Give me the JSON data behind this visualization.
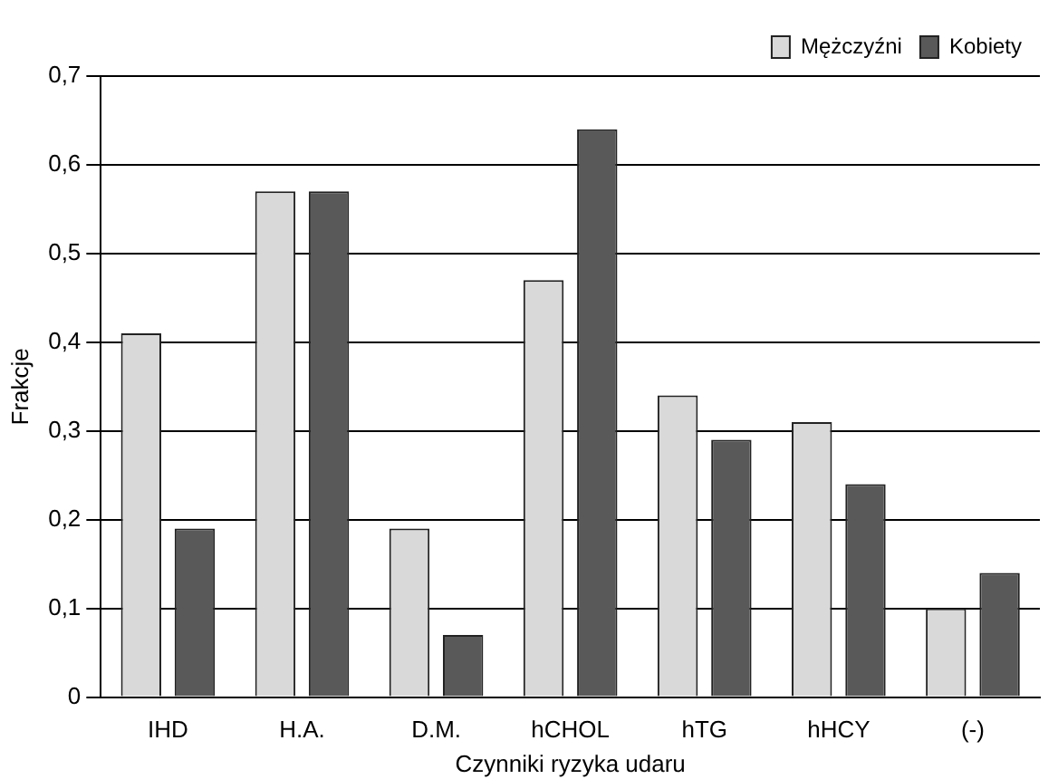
{
  "chart_data": {
    "type": "bar",
    "xlabel": "Czynniki ryzyka udaru",
    "ylabel": "Frakcje",
    "categories": [
      "IHD",
      "H.A.",
      "D.M.",
      "hCHOL",
      "hTG",
      "hHCY",
      "(-)"
    ],
    "series": [
      {
        "name": "Mężczyźni",
        "color": "#d9d9d9",
        "values": [
          0.41,
          0.57,
          0.19,
          0.47,
          0.34,
          0.31,
          0.1
        ]
      },
      {
        "name": "Kobiety",
        "color": "#595959",
        "values": [
          0.19,
          0.57,
          0.07,
          0.64,
          0.29,
          0.24,
          0.14
        ]
      }
    ],
    "ylim": [
      0,
      0.7
    ],
    "yticks": [
      0,
      {
        "value": 0.1,
        "label": "0,1"
      },
      {
        "value": 0.2,
        "label": "0,2"
      },
      {
        "value": 0.3,
        "label": "0,3"
      },
      {
        "value": 0.4,
        "label": "0,4"
      },
      {
        "value": 0.5,
        "label": "0,5"
      },
      {
        "value": 0.6,
        "label": "0,6"
      },
      {
        "value": 0.7,
        "label": "0,7"
      }
    ],
    "grid": "y",
    "legend": "top right"
  }
}
